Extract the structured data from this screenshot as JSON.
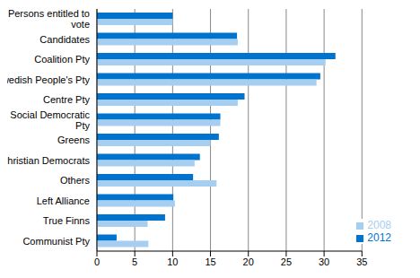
{
  "chart_data": {
    "type": "bar",
    "orientation": "horizontal",
    "grid": true,
    "legend": "bottom right",
    "categories": [
      "Persons entitled to vote",
      "Candidates",
      "Coalition Pty",
      "Swedish People's Pty",
      "Centre Pty",
      "Social Democratic Pty",
      "Greens",
      "Christian Democrats",
      "Others",
      "Left Alliance",
      "True Finns",
      "Communist Pty"
    ],
    "series": [
      {
        "name": "2012",
        "color": "#0073cf",
        "values": [
          10.0,
          18.5,
          31.5,
          29.5,
          19.5,
          16.3,
          16.1,
          13.6,
          12.7,
          10.1,
          9.0,
          2.6
        ]
      },
      {
        "name": "2008",
        "color": "#a6cef0",
        "values": [
          10.0,
          18.6,
          30.2,
          29.0,
          18.6,
          16.3,
          15.0,
          12.9,
          15.8,
          10.3,
          6.7,
          6.8
        ]
      }
    ],
    "xlim": [
      0,
      35
    ],
    "xticks": [
      0,
      5,
      10,
      15,
      20,
      25,
      30,
      35
    ]
  }
}
